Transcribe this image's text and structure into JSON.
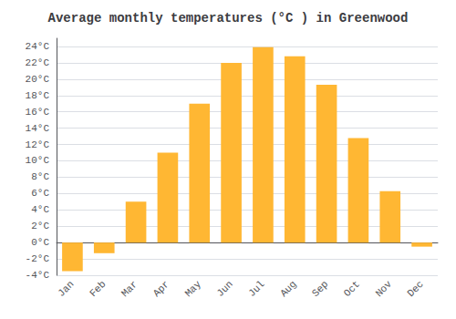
{
  "chart_data": {
    "type": "bar",
    "title": "Average monthly temperatures (°C ) in Greenwood",
    "categories": [
      "Jan",
      "Feb",
      "Mar",
      "Apr",
      "May",
      "Jun",
      "Jul",
      "Aug",
      "Sep",
      "Oct",
      "Nov",
      "Dec"
    ],
    "values": [
      -3.5,
      -1.3,
      5.0,
      11.0,
      17.0,
      22.0,
      23.9,
      22.8,
      19.3,
      12.8,
      6.3,
      -0.5
    ],
    "color": "#FFB733",
    "ylim": [
      -4,
      25
    ],
    "yticks": [
      {
        "value": -4,
        "label": "-4°C"
      },
      {
        "value": -2,
        "label": "-2°C"
      },
      {
        "value": 0,
        "label": "0°C"
      },
      {
        "value": 2,
        "label": "2°C"
      },
      {
        "value": 4,
        "label": "4°C"
      },
      {
        "value": 6,
        "label": "6°C"
      },
      {
        "value": 8,
        "label": "8°C"
      },
      {
        "value": 10,
        "label": "10°C"
      },
      {
        "value": 12,
        "label": "12°C"
      },
      {
        "value": 14,
        "label": "14°C"
      },
      {
        "value": 16,
        "label": "16°C"
      },
      {
        "value": 18,
        "label": "18°C"
      },
      {
        "value": 20,
        "label": "20°C"
      },
      {
        "value": 22,
        "label": "22°C"
      },
      {
        "value": 24,
        "label": "24°C"
      }
    ],
    "grid": true
  }
}
